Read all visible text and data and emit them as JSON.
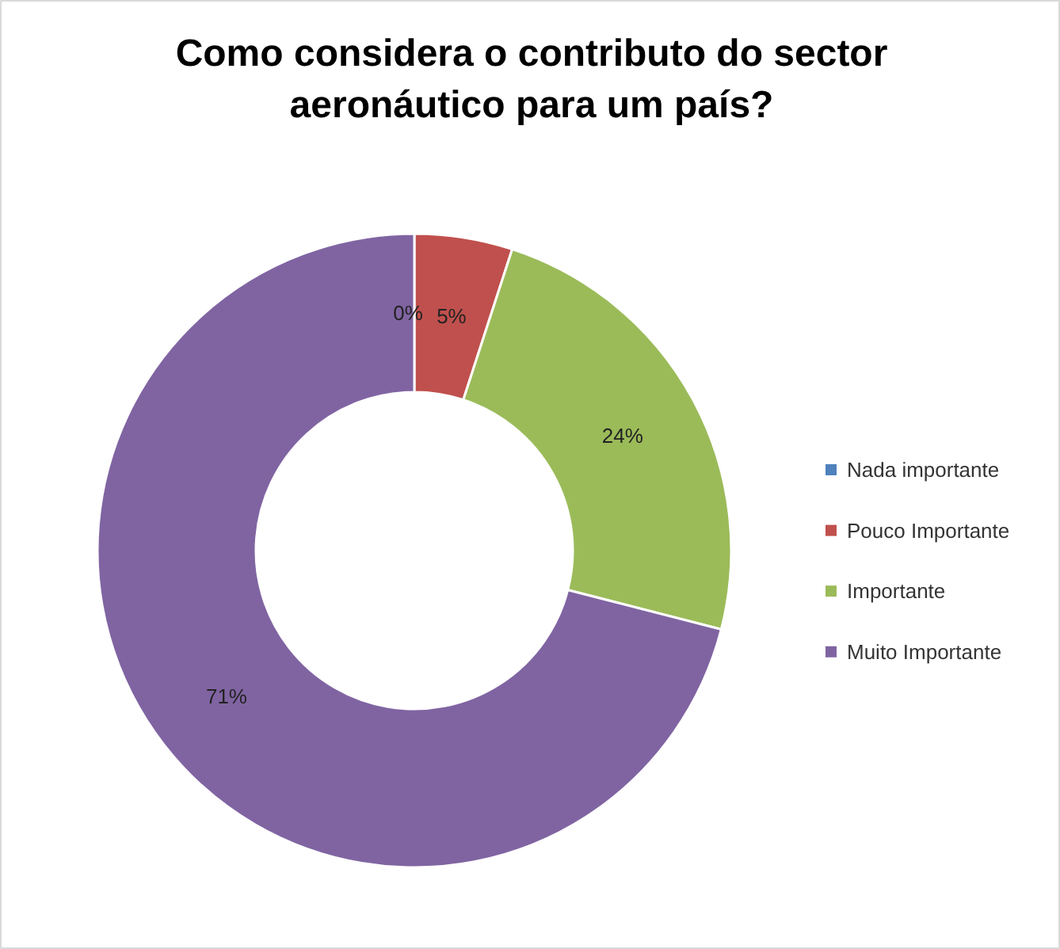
{
  "chart_data": {
    "type": "donut",
    "title": "Como considera o contributo do sector aeronáutico para um país?",
    "categories": [
      "Nada importante",
      "Pouco Importante",
      "Importante",
      "Muito Importante"
    ],
    "values": [
      0,
      5,
      24,
      71
    ],
    "colors": [
      "#4f81bd",
      "#c0504d",
      "#9bbb59",
      "#8064a2"
    ],
    "value_labels": [
      "0%",
      "5%",
      "24%",
      "71%"
    ],
    "legend": "right"
  }
}
